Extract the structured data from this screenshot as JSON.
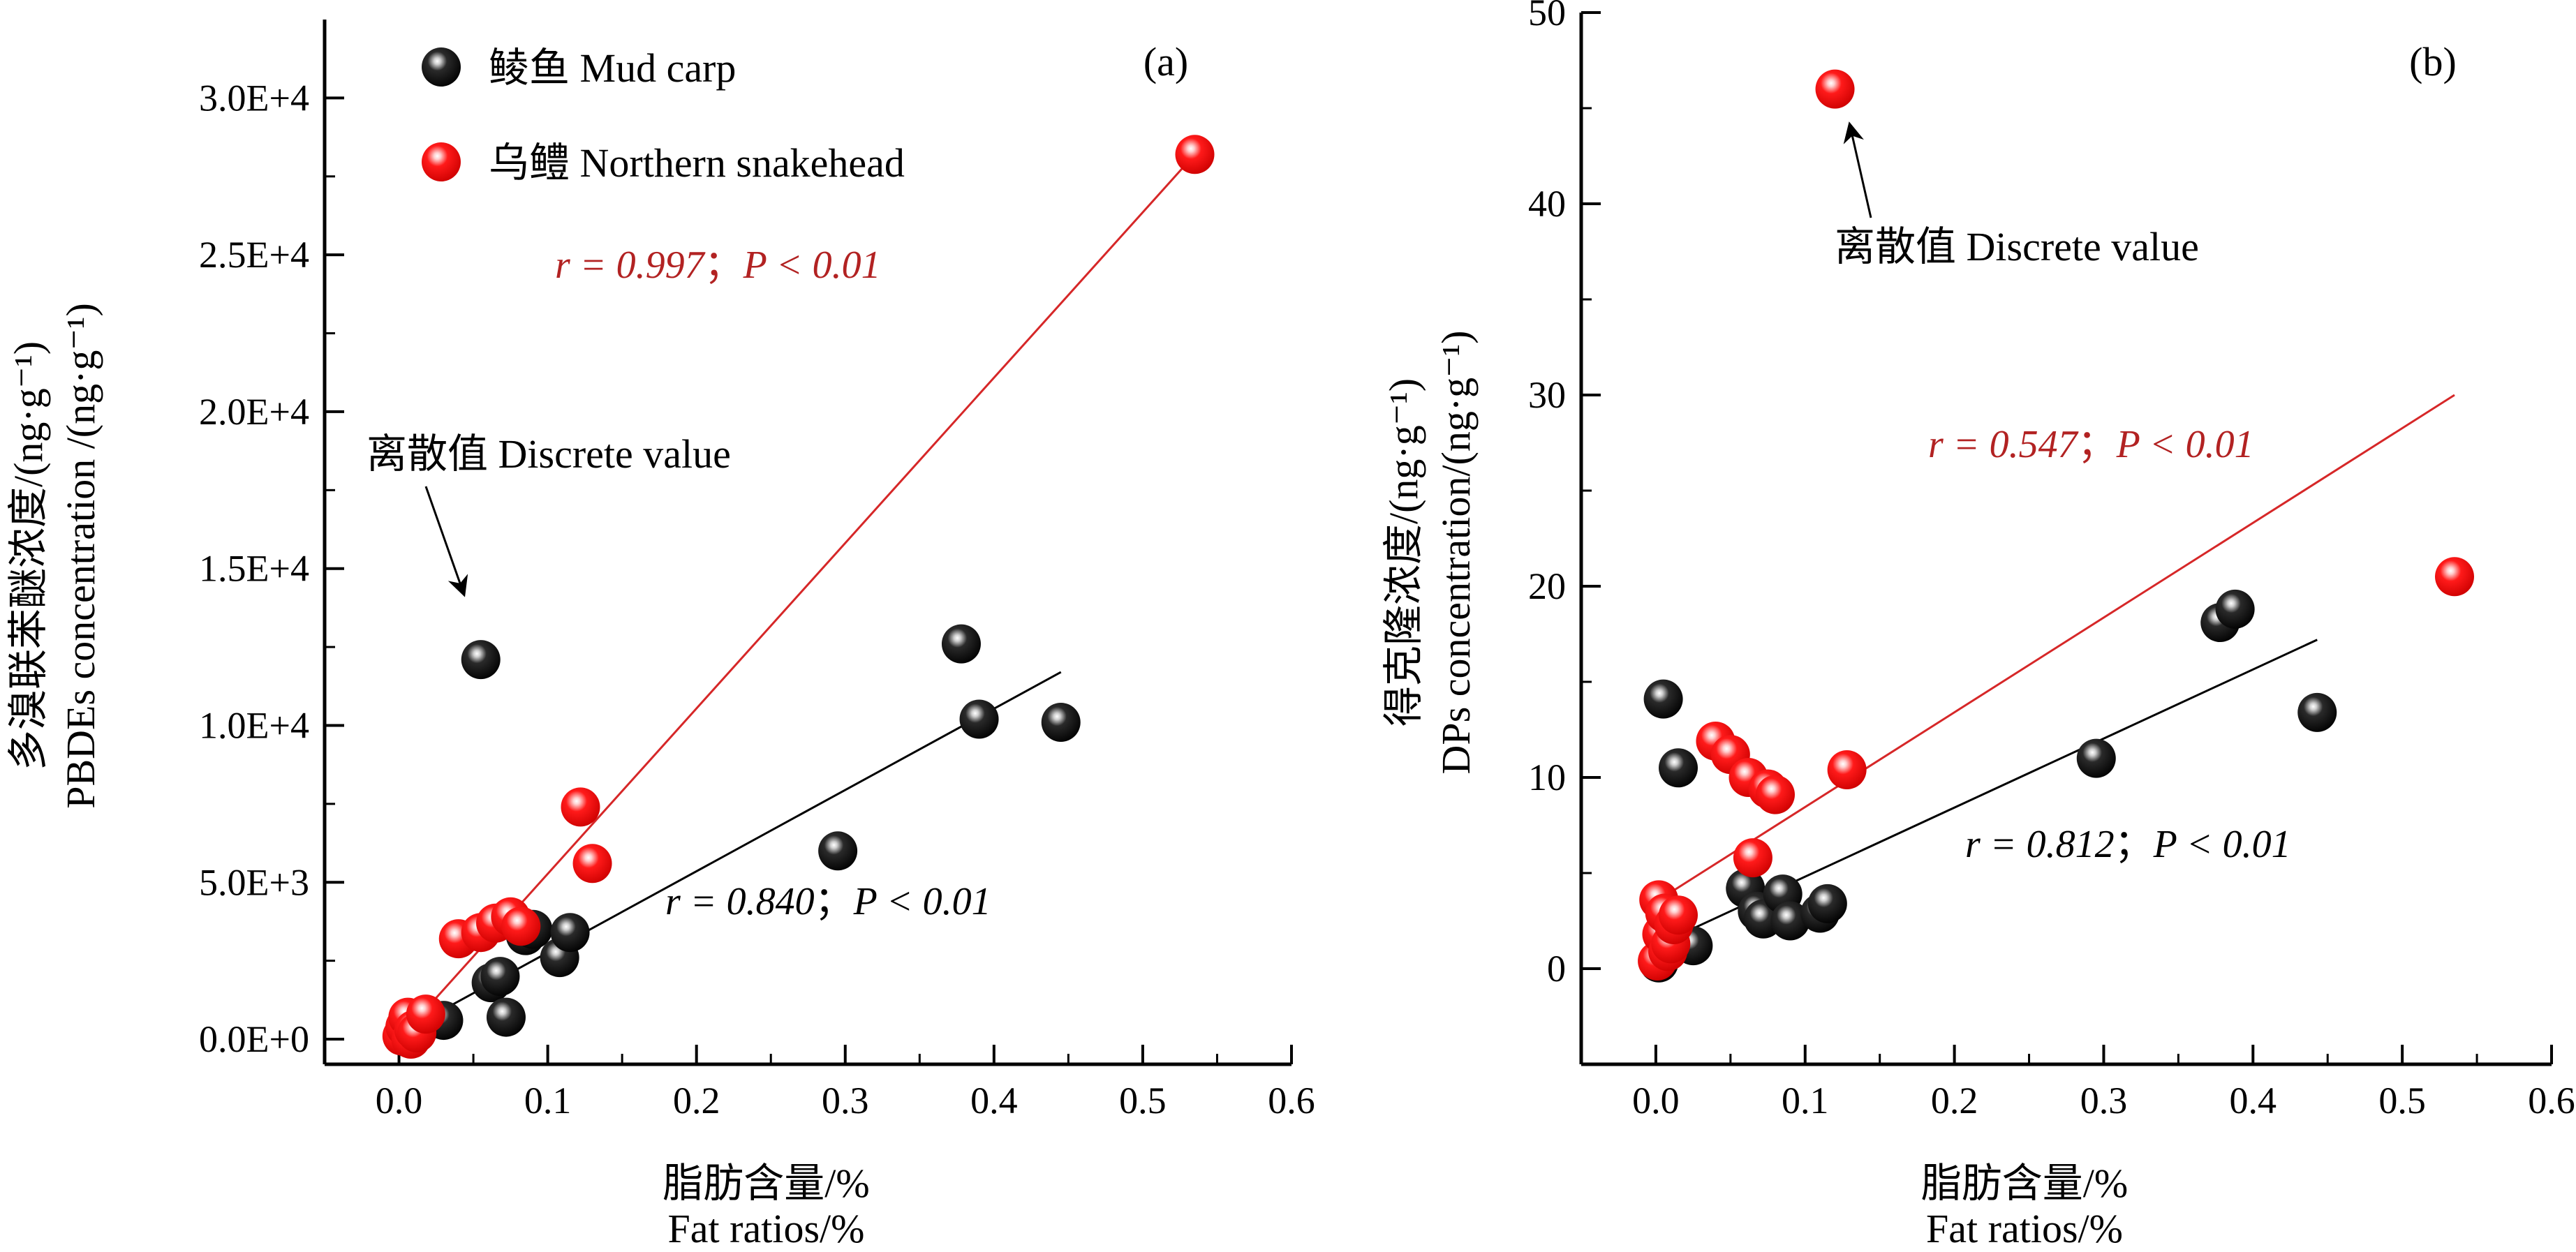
{
  "legend": {
    "mud_carp": "鲮鱼 Mud carp",
    "snakehead": "乌鳢 Northern snakehead"
  },
  "colors": {
    "mud_carp": "#111111",
    "snakehead": "#e31a1c",
    "snakehead_text": "#b22222",
    "mud_carp_line": "#000000",
    "snakehead_line": "#d62728"
  },
  "chart_data": [
    {
      "type": "scatter",
      "panel_label": "(a)",
      "xlabel_cn": "脂肪含量/%",
      "xlabel_en": "Fat ratios/%",
      "ylabel_cn": "多溴联苯醚浓度/(ng·g⁻¹)",
      "ylabel_en": "PBDEs concentration /(ng·g⁻¹)",
      "xlim": [
        -0.05,
        0.6
      ],
      "ylim": [
        -800,
        32500
      ],
      "x_ticks": [
        0.0,
        0.1,
        0.2,
        0.3,
        0.4,
        0.5,
        0.6
      ],
      "x_tick_labels": [
        "0.0",
        "0.1",
        "0.2",
        "0.3",
        "0.4",
        "0.5",
        "0.6"
      ],
      "y_ticks": [
        0,
        5000,
        10000,
        15000,
        20000,
        25000,
        30000
      ],
      "y_tick_labels": [
        "0.0E+0",
        "5.0E+3",
        "1.0E+4",
        "1.5E+4",
        "2.0E+4",
        "2.5E+4",
        "3.0E+4"
      ],
      "series": [
        {
          "name": "鲮鱼 Mud carp",
          "points": [
            [
              0.005,
              100
            ],
            [
              0.008,
              300
            ],
            [
              0.03,
              600
            ],
            [
              0.055,
              12100
            ],
            [
              0.062,
              1800
            ],
            [
              0.068,
              2000
            ],
            [
              0.072,
              700
            ],
            [
              0.085,
              3300
            ],
            [
              0.09,
              3500
            ],
            [
              0.108,
              2600
            ],
            [
              0.115,
              3400
            ],
            [
              0.295,
              6000
            ],
            [
              0.378,
              12600
            ],
            [
              0.39,
              10200
            ],
            [
              0.445,
              10100
            ]
          ],
          "fit": {
            "x": [
              0.005,
              0.445
            ],
            "y": [
              300,
              11700
            ]
          },
          "stat_r": "r = 0.840",
          "stat_p": "P < 0.01"
        },
        {
          "name": "乌鳢 Northern snakehead",
          "points": [
            [
              0.002,
              100
            ],
            [
              0.004,
              400
            ],
            [
              0.006,
              700
            ],
            [
              0.008,
              0
            ],
            [
              0.01,
              300
            ],
            [
              0.012,
              200
            ],
            [
              0.018,
              800
            ],
            [
              0.04,
              3200
            ],
            [
              0.055,
              3400
            ],
            [
              0.065,
              3700
            ],
            [
              0.075,
              3900
            ],
            [
              0.082,
              3600
            ],
            [
              0.122,
              7400
            ],
            [
              0.13,
              5600
            ],
            [
              0.535,
              28200
            ]
          ],
          "fit": {
            "x": [
              0.0,
              0.535
            ],
            "y": [
              0,
              28200
            ]
          },
          "stat_r": "r = 0.997",
          "stat_p": "P < 0.01"
        }
      ],
      "annotation": {
        "text": "离散值 Discrete value"
      }
    },
    {
      "type": "scatter",
      "panel_label": "(b)",
      "xlabel_cn": "脂肪含量/%",
      "xlabel_en": "Fat ratios/%",
      "ylabel_cn": "得克隆浓度/(ng·g⁻¹)",
      "ylabel_en": "DPs concentration/(ng·g⁻¹)",
      "xlim": [
        -0.05,
        0.6
      ],
      "ylim": [
        -5,
        50
      ],
      "x_ticks": [
        0.0,
        0.1,
        0.2,
        0.3,
        0.4,
        0.5,
        0.6
      ],
      "x_tick_labels": [
        "0.0",
        "0.1",
        "0.2",
        "0.3",
        "0.4",
        "0.5",
        "0.6"
      ],
      "y_ticks": [
        0,
        10,
        20,
        30,
        40,
        50
      ],
      "y_tick_labels": [
        "0",
        "10",
        "20",
        "30",
        "40",
        "50"
      ],
      "series": [
        {
          "name": "鲮鱼 Mud carp",
          "points": [
            [
              0.002,
              0.3
            ],
            [
              0.005,
              14.1
            ],
            [
              0.015,
              10.5
            ],
            [
              0.025,
              1.2
            ],
            [
              0.06,
              4.2
            ],
            [
              0.068,
              3.0
            ],
            [
              0.072,
              2.6
            ],
            [
              0.085,
              3.9
            ],
            [
              0.09,
              2.5
            ],
            [
              0.11,
              2.9
            ],
            [
              0.115,
              3.4
            ],
            [
              0.295,
              11.0
            ],
            [
              0.378,
              18.1
            ],
            [
              0.388,
              18.8
            ],
            [
              0.443,
              13.4
            ]
          ],
          "fit": {
            "x": [
              0.0,
              0.443
            ],
            "y": [
              1.2,
              17.2
            ]
          },
          "stat_r": "r = 0.812",
          "stat_p": "P < 0.01"
        },
        {
          "name": "乌鳢 Northern snakehead",
          "points": [
            [
              0.001,
              0.4
            ],
            [
              0.002,
              3.6
            ],
            [
              0.004,
              1.8
            ],
            [
              0.006,
              2.9
            ],
            [
              0.008,
              0.9
            ],
            [
              0.01,
              1.3
            ],
            [
              0.012,
              2.3
            ],
            [
              0.015,
              2.8
            ],
            [
              0.04,
              11.9
            ],
            [
              0.05,
              11.2
            ],
            [
              0.062,
              10.0
            ],
            [
              0.065,
              5.8
            ],
            [
              0.075,
              9.4
            ],
            [
              0.08,
              9.1
            ],
            [
              0.128,
              10.4
            ],
            [
              0.12,
              46.0
            ],
            [
              0.535,
              20.5
            ]
          ],
          "fit": {
            "x": [
              0.0,
              0.535
            ],
            "y": [
              3.5,
              30.0
            ]
          },
          "stat_r": "r = 0.547",
          "stat_p": "P < 0.01"
        }
      ],
      "annotation": {
        "text": "离散值 Discrete value"
      }
    }
  ]
}
